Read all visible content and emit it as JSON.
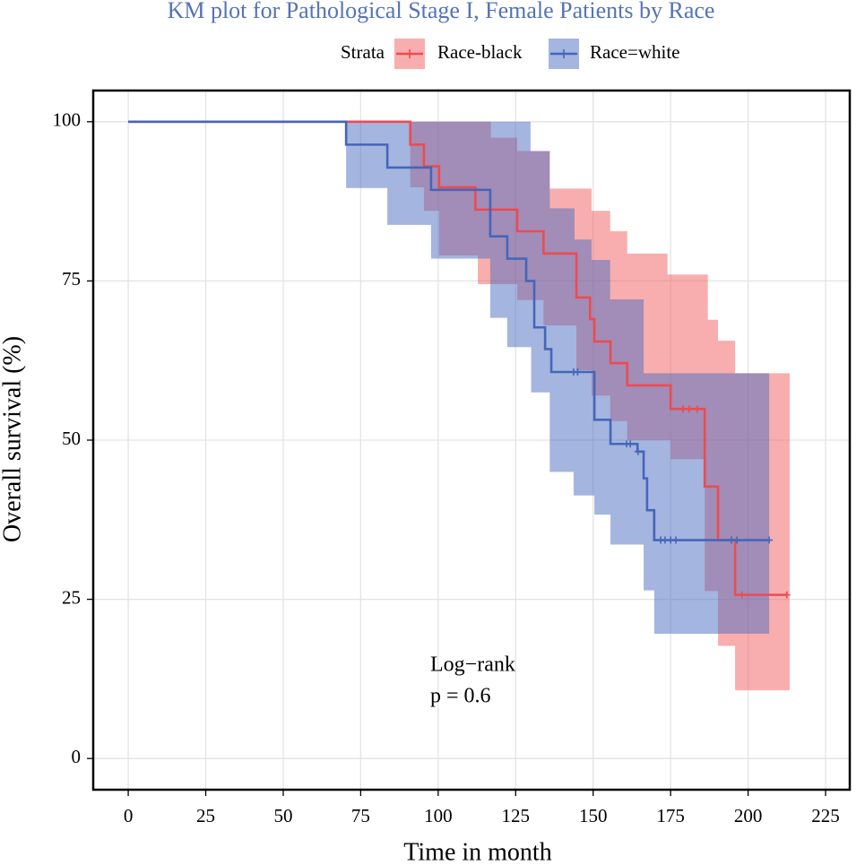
{
  "chart_data": {
    "type": "km",
    "title": "KM plot for Pathological Stage I, Female Patients by Race",
    "legend_title": "Strata",
    "x_label": "Time in month",
    "y_label": "Overall survival (%)",
    "annotation": [
      "Log−rank",
      "p = 0.6"
    ],
    "xlim": [
      -11.3,
      232.8
    ],
    "ylim": [
      -4.9,
      104.9
    ],
    "xticks": [
      0,
      25,
      50,
      75,
      100,
      125,
      150,
      175,
      200,
      225
    ],
    "yticks": [
      0,
      25,
      50,
      75,
      100
    ],
    "grid": true,
    "series": [
      {
        "name": "Race-black",
        "color": "#ee4b50",
        "band_color": "#f25e5e",
        "x": [
          0,
          91,
          95.4,
          100.3,
          112,
          125.5,
          134,
          144.6,
          149,
          150.4,
          155.6,
          161,
          175,
          186,
          190.3,
          195.8
        ],
        "values": [
          100,
          96.4,
          93,
          89.7,
          86.2,
          82.8,
          79.3,
          72.4,
          69,
          65.5,
          62.1,
          58.6,
          54.9,
          42.7,
          34.3,
          25.7
        ],
        "censor_x": [
          179,
          181,
          183.6,
          198,
          212.5
        ],
        "upper": {
          "x": [
            0,
            117,
            125.5,
            136,
            149.5,
            155.5,
            161,
            174,
            187,
            190.3,
            195.8,
            213.4
          ],
          "values": [
            100,
            97.5,
            95.4,
            89.5,
            86,
            82.8,
            79.3,
            76,
            68.9,
            65.6,
            60.5,
            60.5
          ]
        },
        "lower": {
          "x": [
            0,
            91,
            95.4,
            100.3,
            112.8,
            125.5,
            134,
            144.6,
            149.5,
            155.5,
            161,
            175,
            186,
            190.3,
            195.8,
            213.4
          ],
          "values": [
            100,
            89.7,
            86,
            79,
            74.5,
            72,
            68,
            61,
            57,
            53,
            50,
            47,
            26.3,
            17.7,
            10.7,
            10.7
          ]
        }
      },
      {
        "name": "Race=white",
        "color": "#4466bb",
        "band_color": "#4a6cc0",
        "x": [
          0,
          70.3,
          83.6,
          97.7,
          116.8,
          122.3,
          128.4,
          131,
          134.5,
          136.5,
          150.4,
          155.6,
          164.3,
          166.3,
          167.4,
          169.7
        ],
        "values": [
          100,
          96.4,
          92.8,
          89.3,
          82,
          78.5,
          75,
          67.7,
          64.3,
          60.7,
          53.2,
          49.4,
          48.2,
          44,
          39,
          34.3
        ],
        "censor_x": [
          143.7,
          145,
          160.8,
          162,
          164.5,
          171.8,
          173.2,
          175,
          176.7,
          194.6,
          196.4,
          206.8
        ],
        "upper": {
          "x": [
            0,
            129.8,
            136,
            144,
            149.5,
            155.5,
            166.3,
            206.8
          ],
          "values": [
            100,
            95.4,
            86.4,
            81.5,
            78.3,
            72.1,
            60.5,
            60.5
          ]
        },
        "lower": {
          "x": [
            0,
            70.3,
            83.6,
            97.7,
            116.8,
            122.3,
            130,
            136,
            143.7,
            150.4,
            155.6,
            166.3,
            169.7,
            206.8
          ],
          "values": [
            100,
            89.6,
            83.8,
            78.5,
            69.2,
            64.6,
            57.5,
            45,
            41.3,
            38.3,
            33.6,
            26.4,
            19.6,
            19.6
          ]
        }
      }
    ]
  }
}
